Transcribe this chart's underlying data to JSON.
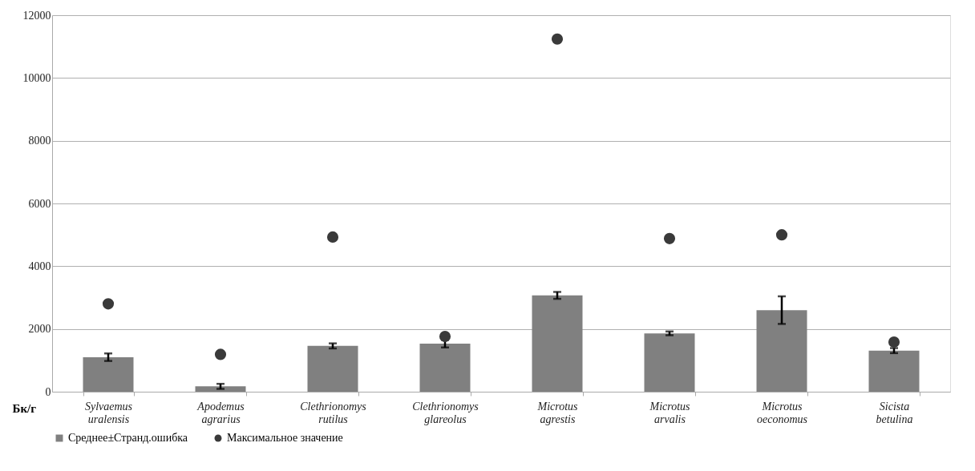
{
  "chart_data": {
    "type": "bar",
    "ylabel": "Бк/г",
    "categories": [
      "Sylvaemus uralensis",
      "Apodemus agrarius",
      "Clethrionomys rutilus",
      "Clethrionomys glareolus",
      "Microtus agrestis",
      "Microtus arvalis",
      "Microtus oeconomus",
      "Sicista betulina"
    ],
    "series": [
      {
        "name": "Среднее±Странд.ошибка",
        "color": "#808080",
        "values": [
          1100,
          170,
          1460,
          1530,
          3070,
          1860,
          2600,
          1310
        ],
        "errors": [
          120,
          80,
          80,
          120,
          110,
          60,
          440,
          80
        ]
      },
      {
        "name": "Максимальное значение",
        "type": "scatter",
        "color": "#3a3a3a",
        "marker": "circle",
        "values": [
          2800,
          1190,
          4930,
          1760,
          11240,
          4880,
          5000,
          1580
        ]
      }
    ],
    "ylim": [
      0,
      12000
    ],
    "yticks": [
      0,
      2000,
      4000,
      6000,
      8000,
      10000,
      12000
    ],
    "grid": "y",
    "legend": "bottom"
  }
}
